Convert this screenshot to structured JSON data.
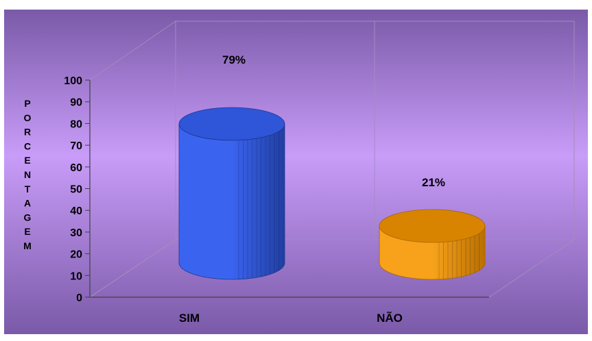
{
  "chart_data": {
    "type": "bar",
    "title": "",
    "xlabel": "",
    "ylabel": "PORCENTAGEM",
    "categories": [
      "SIM",
      "NÃO"
    ],
    "series": [
      {
        "values": [
          79,
          21
        ]
      }
    ],
    "data_labels": [
      "79%",
      "21%"
    ],
    "ylim": [
      0,
      100
    ],
    "yticks": [
      0,
      10,
      20,
      30,
      40,
      50,
      60,
      70,
      80,
      90,
      100
    ],
    "grid": false,
    "legend": "none",
    "bar_style": "3d-cylinder",
    "colors": {
      "background_edge": "#7a5aa8",
      "background_center": "#c89cf8",
      "bar_sim": "#3a64f0",
      "bar_sim_dark": "#213fa0",
      "bar_sim_top": "#2f55d8",
      "bar_nao": "#f7a21a",
      "bar_nao_dark": "#b96f00",
      "bar_nao_top": "#d88400"
    }
  }
}
